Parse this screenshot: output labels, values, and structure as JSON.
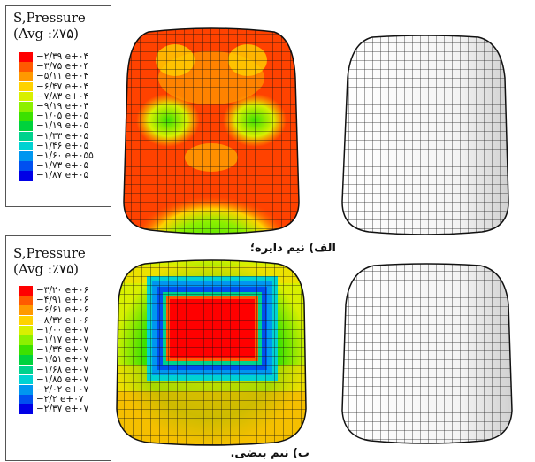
{
  "legend_a": {
    "title_line1": "S,Pressure",
    "title_line2": "(Avg :٪۷۵)",
    "entries": [
      {
        "label": "−۲/۳۹ e+۰۴",
        "color": "#ff0000"
      },
      {
        "label": "−۳/۷۵ e+۰۴",
        "color": "#ff5a00"
      },
      {
        "label": "−۵/۱۱ e+۰۴",
        "color": "#ff9900"
      },
      {
        "label": "−۶/۴۷ e+۰۴",
        "color": "#ffd200"
      },
      {
        "label": "−۷/۸۳ e+۰۴",
        "color": "#d8f000"
      },
      {
        "label": "−۹/۱۹ e+۰۴",
        "color": "#8cf000"
      },
      {
        "label": "−۱/۰۵ e+۰۵",
        "color": "#3ce100"
      },
      {
        "label": "−۱/۱۹ e+۰۵",
        "color": "#00d23c"
      },
      {
        "label": "−۱/۳۳ e+۰۵",
        "color": "#00d28c"
      },
      {
        "label": "−۱/۴۶ e+۰۵",
        "color": "#00d2d2"
      },
      {
        "label": "−۱/۶۰ e+۰۵۵",
        "color": "#0096f0"
      },
      {
        "label": "−۱/۷۳ e+۰۵",
        "color": "#0050f0"
      },
      {
        "label": "−۱/۸۷ e+۰۵",
        "color": "#0000e6"
      }
    ]
  },
  "legend_b": {
    "title_line1": "S,Pressure",
    "title_line2": "(Avg :٪۷۵)",
    "entries": [
      {
        "label": "−۳/۲۰ e+۰۶",
        "color": "#ff0000"
      },
      {
        "label": "−۴/۹۱ e+۰۶",
        "color": "#ff5a00"
      },
      {
        "label": "−۶/۶۱ e+۰۶",
        "color": "#ff9900"
      },
      {
        "label": "−۸/۳۲ e+۰۶",
        "color": "#ffd200"
      },
      {
        "label": "−۱/۰۰ e+۰۷",
        "color": "#d8f000"
      },
      {
        "label": "−۱/۱۷ e+۰۷",
        "color": "#8cf000"
      },
      {
        "label": "−۱/۳۴ e+۰۷",
        "color": "#3ce100"
      },
      {
        "label": "−۱/۵۱ e+۰۷",
        "color": "#00d23c"
      },
      {
        "label": "−۱/۶۸ e+۰۷",
        "color": "#00d28c"
      },
      {
        "label": "−۱/۸۵ e+۰۷",
        "color": "#00d2d2"
      },
      {
        "label": "−۲/۰۲ e+۰۷",
        "color": "#0096f0"
      },
      {
        "label": "−۲/۲ e+۰۷",
        "color": "#0050f0"
      },
      {
        "label": "−۲/۳۷ e+۰۷",
        "color": "#0000e6"
      }
    ]
  },
  "captions": {
    "a": "الف) نیم دایره؛",
    "b": "ب) نیم بیضی."
  }
}
